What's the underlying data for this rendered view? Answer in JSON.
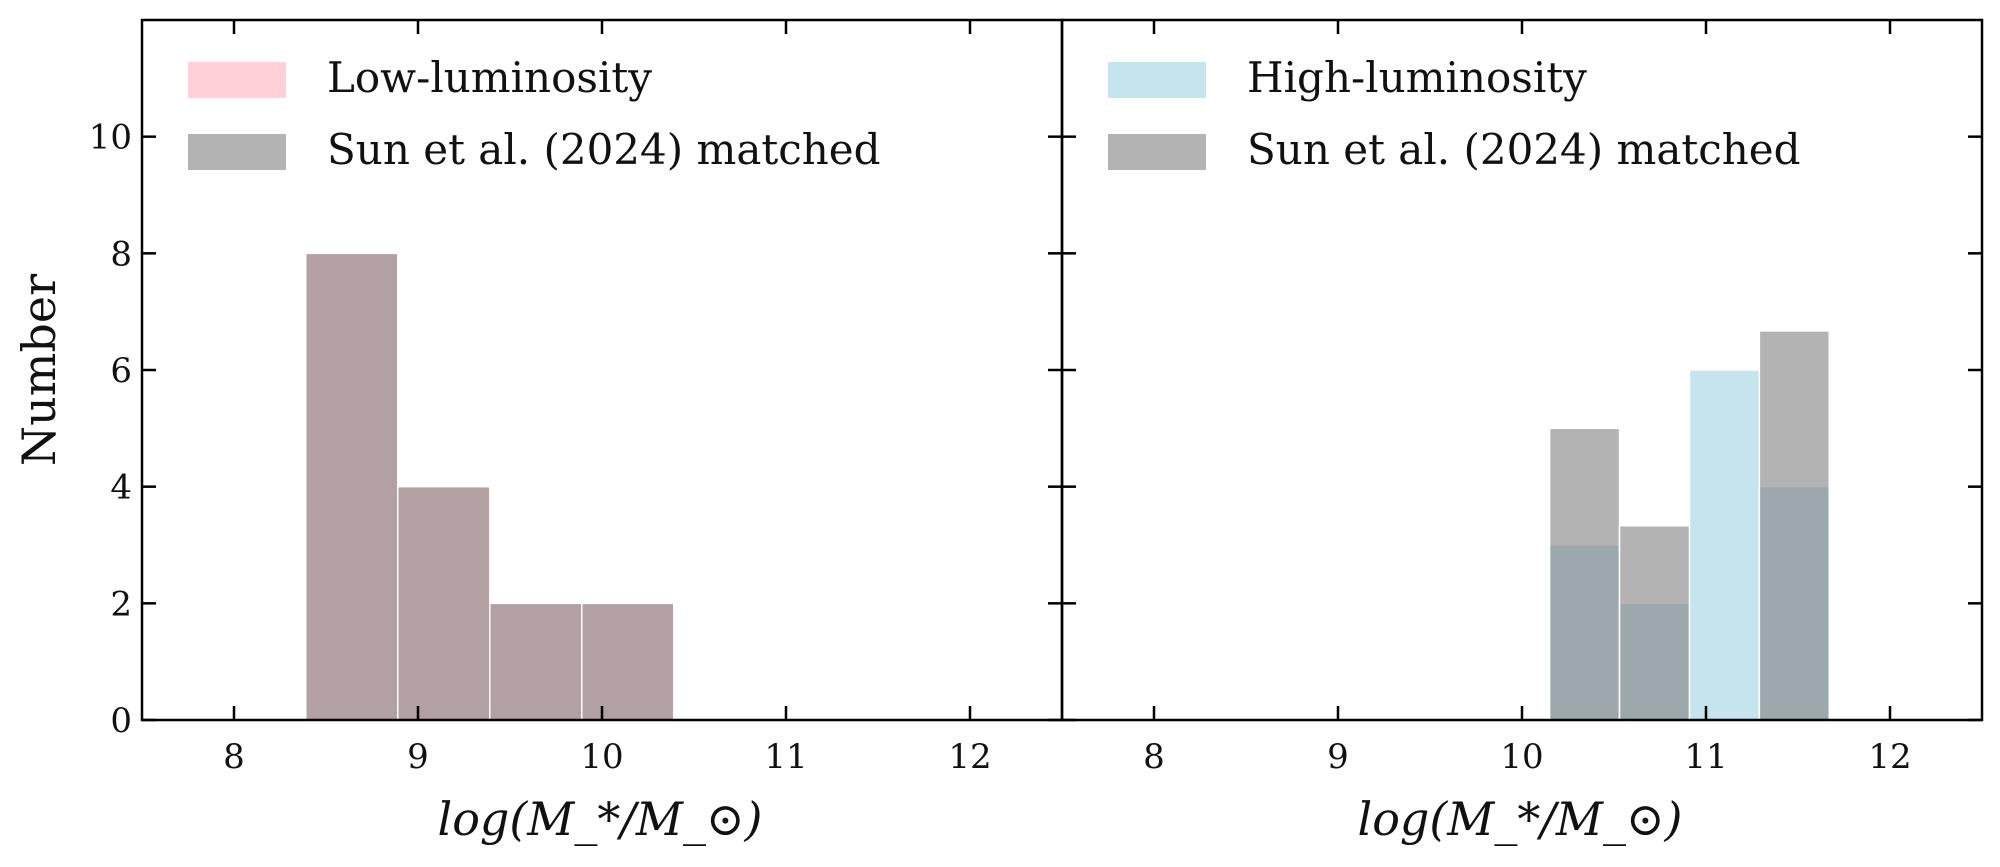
{
  "figure": {
    "ylabel": "Number",
    "xlabel": "log(M_*/M_⊙)"
  },
  "chart_data": [
    {
      "type": "bar",
      "panel": "left",
      "xlim": [
        7.5,
        12.5
      ],
      "ylim": [
        0,
        12
      ],
      "xticks": [
        8,
        9,
        10,
        11,
        12
      ],
      "yticks": [
        0,
        2,
        4,
        6,
        8,
        10
      ],
      "xlabel": "log(M_*/M_⊙)",
      "ylabel": "Number",
      "legend_position": "top-left",
      "series": [
        {
          "name": "Low-luminosity",
          "color": "#ffc0cb",
          "alpha": 0.75,
          "bins": [
            {
              "x0": 8.39,
              "x1": 8.89,
              "count": 8
            },
            {
              "x0": 8.89,
              "x1": 9.39,
              "count": 4
            },
            {
              "x0": 9.39,
              "x1": 9.89,
              "count": 2
            },
            {
              "x0": 9.89,
              "x1": 10.39,
              "count": 2
            }
          ]
        },
        {
          "name": "Sun et al. (2024) matched",
          "color": "#808080",
          "alpha": 0.6,
          "bins": [
            {
              "x0": 8.39,
              "x1": 8.89,
              "count": 8
            },
            {
              "x0": 8.89,
              "x1": 9.39,
              "count": 4
            },
            {
              "x0": 9.39,
              "x1": 9.89,
              "count": 2
            },
            {
              "x0": 9.89,
              "x1": 10.39,
              "count": 2
            }
          ]
        }
      ]
    },
    {
      "type": "bar",
      "panel": "right",
      "xlim": [
        7.5,
        12.5
      ],
      "ylim": [
        0,
        12
      ],
      "xticks": [
        8,
        9,
        10,
        11,
        12
      ],
      "yticks": [
        0,
        2,
        4,
        6,
        8,
        10
      ],
      "xlabel": "log(M_*/M_⊙)",
      "legend_position": "top-left",
      "series": [
        {
          "name": "High-luminosity",
          "color": "#add8e6",
          "alpha": 0.7,
          "bins": [
            {
              "x0": 10.15,
              "x1": 10.53,
              "count": 3
            },
            {
              "x0": 10.53,
              "x1": 10.91,
              "count": 2
            },
            {
              "x0": 10.91,
              "x1": 11.29,
              "count": 6
            },
            {
              "x0": 11.29,
              "x1": 11.67,
              "count": 4
            }
          ]
        },
        {
          "name": "Sun et al. (2024) matched",
          "color": "#808080",
          "alpha": 0.6,
          "bins": [
            {
              "x0": 10.15,
              "x1": 10.53,
              "count": 5
            },
            {
              "x0": 10.53,
              "x1": 10.91,
              "count": 3.33
            },
            {
              "x0": 10.91,
              "x1": 11.29,
              "count": 0
            },
            {
              "x0": 11.29,
              "x1": 11.67,
              "count": 6.67
            }
          ]
        }
      ]
    }
  ]
}
